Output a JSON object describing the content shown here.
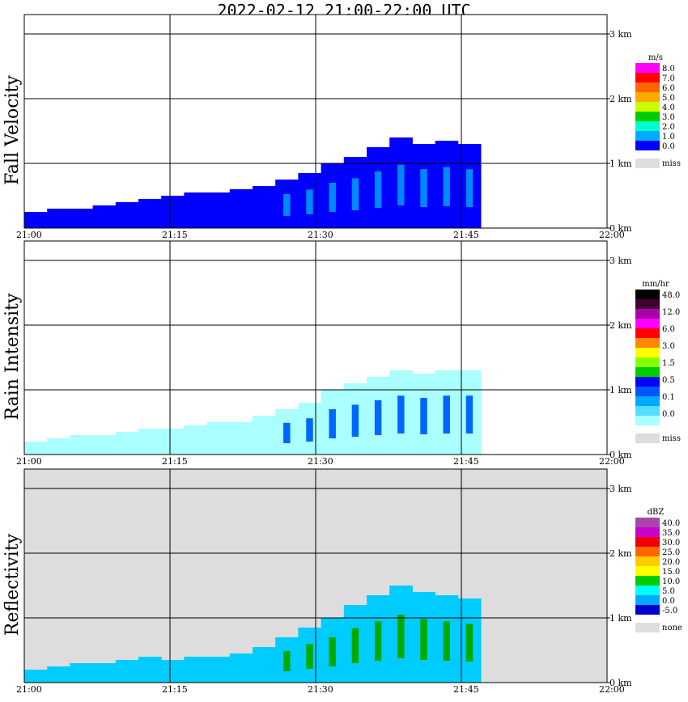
{
  "title": "2022-02-12  21:00-22:00 UTC",
  "x_ticks": [
    "21:00",
    "21:15",
    "21:30",
    "21:45",
    "22:00"
  ],
  "y_ticks": [
    "0 km",
    "1 km",
    "2 km",
    "3 km"
  ],
  "chart_data": [
    {
      "type": "heatmap",
      "title": "Fall Velocity",
      "x_range": [
        "21:00",
        "22:00"
      ],
      "ylim": [
        0,
        3
      ],
      "grid": true,
      "background": "#ffffff",
      "legend": {
        "unit": "m/s",
        "labels": [
          "8.0",
          "7.0",
          "6.0",
          "5.0",
          "4.0",
          "3.0",
          "2.0",
          "1.0",
          "0.0"
        ],
        "colors": [
          "#ff00ff",
          "#ff0000",
          "#ff6600",
          "#ffaa00",
          "#ccff00",
          "#00cc00",
          "#00ffcc",
          "#00aaff",
          "#0000ff"
        ],
        "miss_label": "miss",
        "miss_color": "#dddddd"
      },
      "echo_top_km": [
        0.25,
        0.3,
        0.3,
        0.35,
        0.4,
        0.45,
        0.5,
        0.55,
        0.55,
        0.6,
        0.65,
        0.75,
        0.85,
        1.0,
        1.1,
        1.25,
        1.4,
        1.3,
        1.35,
        1.3
      ],
      "echo_color": "#0000ff",
      "echo_highlight": "#0088ff"
    },
    {
      "type": "heatmap",
      "title": "Rain Intensity",
      "x_range": [
        "21:00",
        "22:00"
      ],
      "ylim": [
        0,
        3
      ],
      "grid": true,
      "background": "#ffffff",
      "legend": {
        "unit": "mm/hr",
        "labels": [
          "48.0",
          "12.0",
          "6.0",
          "3.0",
          "1.5",
          "0.5",
          "0.1",
          "0.0"
        ],
        "colors": [
          "#000000",
          "#400030",
          "#aa00aa",
          "#ff00ff",
          "#ff0000",
          "#ff8800",
          "#ffff00",
          "#88ff00",
          "#00cc00",
          "#0000ff",
          "#0055ff",
          "#00aaff",
          "#55ddff",
          "#aaffff"
        ],
        "miss_label": "miss",
        "miss_color": "#dddddd"
      },
      "echo_top_km": [
        0.2,
        0.25,
        0.3,
        0.3,
        0.35,
        0.4,
        0.4,
        0.45,
        0.5,
        0.5,
        0.6,
        0.7,
        0.8,
        1.0,
        1.1,
        1.2,
        1.3,
        1.25,
        1.3,
        1.3
      ],
      "echo_color": "#aaffff",
      "echo_highlight": "#0066ff"
    },
    {
      "type": "heatmap",
      "title": "Reflectivity",
      "x_range": [
        "21:00",
        "22:00"
      ],
      "ylim": [
        0,
        3
      ],
      "grid": true,
      "background": "#dddddd",
      "legend": {
        "unit": "dBZ",
        "labels": [
          "40.0",
          "35.0",
          "30.0",
          "25.0",
          "20.0",
          "15.0",
          "10.0",
          "5.0",
          "0.0",
          "-5.0"
        ],
        "colors": [
          "#aa44aa",
          "#cc00cc",
          "#ee0000",
          "#ff6600",
          "#ffcc00",
          "#ffff00",
          "#00cc00",
          "#00ffff",
          "#00aaff",
          "#0000cc"
        ],
        "miss_label": "none",
        "miss_color": "#dddddd"
      },
      "echo_top_km": [
        0.2,
        0.25,
        0.3,
        0.3,
        0.35,
        0.4,
        0.35,
        0.4,
        0.4,
        0.45,
        0.55,
        0.7,
        0.85,
        1.0,
        1.2,
        1.35,
        1.5,
        1.4,
        1.35,
        1.3
      ],
      "echo_color": "#00ccff",
      "echo_highlight": "#00aa00"
    }
  ]
}
